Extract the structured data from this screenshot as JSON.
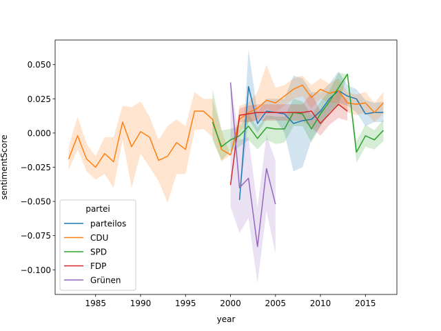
{
  "chart_data": {
    "type": "line",
    "xlabel": "year",
    "ylabel": "sentimentScore",
    "xlim": [
      1980.5,
      2018.5
    ],
    "ylim": [
      -0.118,
      0.068
    ],
    "xticks": [
      1985,
      1990,
      1995,
      2000,
      2005,
      2010,
      2015
    ],
    "yticks": [
      -0.1,
      -0.075,
      -0.05,
      -0.025,
      0.0,
      0.025,
      0.05
    ],
    "ytick_labels": [
      "−0.100",
      "−0.075",
      "−0.050",
      "−0.025",
      "0.000",
      "0.025",
      "0.050"
    ],
    "grid": false,
    "legend_title": "partei",
    "legend_position": "lower-left",
    "series": [
      {
        "name": "parteilos",
        "color": "#1f77b4",
        "x": [
          2001,
          2002,
          2003,
          2004,
          2005,
          2006,
          2007,
          2008,
          2009,
          2010,
          2011,
          2012,
          2013,
          2014,
          2015,
          2016,
          2017
        ],
        "y": [
          -0.049,
          0.034,
          0.007,
          0.016,
          0.015,
          0.014,
          0.007,
          0.009,
          0.01,
          0.016,
          0.025,
          0.031,
          0.027,
          0.025,
          0.014,
          0.015,
          0.015
        ],
        "lower": [
          -0.049,
          0.01,
          0.0,
          0.01,
          0.01,
          0.0,
          -0.028,
          -0.025,
          -0.005,
          0.005,
          0.015,
          0.022,
          0.02,
          0.015,
          0.005,
          0.008,
          0.008
        ],
        "upper": [
          -0.049,
          0.061,
          0.015,
          0.025,
          0.025,
          0.025,
          0.042,
          0.04,
          0.03,
          0.03,
          0.036,
          0.045,
          0.035,
          0.032,
          0.024,
          0.022,
          0.023
        ]
      },
      {
        "name": "CDU",
        "color": "#ff7f0e",
        "x": [
          1982,
          1983,
          1984,
          1985,
          1986,
          1987,
          1988,
          1989,
          1990,
          1991,
          1992,
          1993,
          1994,
          1995,
          1996,
          1997,
          1998,
          1999,
          2000,
          2001,
          2002,
          2003,
          2004,
          2005,
          2006,
          2007,
          2008,
          2009,
          2010,
          2011,
          2012,
          2013,
          2014,
          2015,
          2016,
          2017
        ],
        "y": [
          -0.019,
          -0.002,
          -0.019,
          -0.025,
          -0.015,
          -0.021,
          0.008,
          -0.01,
          0.001,
          -0.003,
          -0.02,
          -0.017,
          -0.007,
          -0.012,
          0.016,
          0.016,
          0.01,
          -0.012,
          -0.016,
          0.01,
          0.015,
          0.018,
          0.024,
          0.022,
          0.027,
          0.032,
          0.035,
          0.026,
          0.032,
          0.029,
          0.031,
          0.022,
          0.021,
          0.022,
          0.015,
          0.022
        ],
        "lower": [
          -0.027,
          -0.012,
          -0.028,
          -0.034,
          -0.03,
          -0.04,
          -0.005,
          -0.04,
          -0.015,
          -0.025,
          -0.035,
          -0.051,
          -0.03,
          -0.03,
          0.002,
          0.003,
          -0.003,
          -0.021,
          -0.016,
          0.0,
          0.008,
          0.01,
          0.018,
          0.015,
          0.02,
          0.025,
          0.027,
          0.018,
          0.025,
          0.022,
          0.022,
          0.015,
          0.013,
          0.015,
          0.008,
          0.014
        ],
        "upper": [
          -0.01,
          0.012,
          -0.008,
          -0.017,
          -0.003,
          -0.003,
          0.02,
          0.019,
          0.023,
          0.012,
          -0.005,
          0.005,
          0.01,
          0.005,
          0.03,
          0.025,
          0.025,
          0.002,
          -0.016,
          0.02,
          0.022,
          0.03,
          0.05,
          0.033,
          0.035,
          0.04,
          0.042,
          0.035,
          0.04,
          0.036,
          0.04,
          0.03,
          0.028,
          0.03,
          0.022,
          0.03
        ]
      },
      {
        "name": "SPD",
        "color": "#2ca02c",
        "x": [
          1998,
          1999,
          2000,
          2001,
          2002,
          2003,
          2004,
          2005,
          2006,
          2007,
          2008,
          2009,
          2010,
          2011,
          2012,
          2013,
          2014,
          2015,
          2016,
          2017
        ],
        "y": [
          0.008,
          -0.01,
          -0.005,
          -0.002,
          0.005,
          -0.004,
          0.004,
          0.003,
          0.003,
          0.015,
          0.014,
          0.003,
          0.014,
          0.023,
          0.033,
          0.043,
          -0.014,
          -0.002,
          -0.005,
          0.002
        ],
        "lower": [
          -0.005,
          -0.02,
          -0.013,
          -0.01,
          -0.005,
          -0.012,
          -0.005,
          -0.008,
          -0.007,
          0.005,
          0.005,
          -0.007,
          0.005,
          0.015,
          0.02,
          0.043,
          -0.022,
          -0.01,
          -0.012,
          -0.006
        ],
        "upper": [
          0.032,
          0.002,
          0.003,
          0.005,
          0.014,
          0.004,
          0.013,
          0.012,
          0.012,
          0.025,
          0.023,
          0.013,
          0.023,
          0.031,
          0.044,
          0.043,
          -0.006,
          0.006,
          0.002,
          0.01
        ]
      },
      {
        "name": "FDP",
        "color": "#d62728",
        "x": [
          2000,
          2001,
          2002,
          2003,
          2004,
          2005,
          2006,
          2007,
          2008,
          2009,
          2010,
          2011,
          2012,
          2013
        ],
        "y": [
          -0.038,
          0.013,
          0.014,
          0.015,
          0.015,
          0.015,
          0.015,
          0.015,
          0.015,
          0.016,
          0.007,
          0.014,
          0.021,
          0.016
        ],
        "lower": [
          -0.038,
          0.008,
          0.008,
          0.009,
          0.009,
          0.009,
          0.009,
          0.009,
          0.009,
          0.004,
          -0.002,
          0.006,
          0.011,
          0.009
        ],
        "upper": [
          -0.038,
          0.018,
          0.02,
          0.021,
          0.021,
          0.021,
          0.021,
          0.021,
          0.021,
          0.029,
          0.016,
          0.022,
          0.031,
          0.024
        ]
      },
      {
        "name": "Grünen",
        "color": "#9467bd",
        "x": [
          2000,
          2001,
          2002,
          2003,
          2004,
          2005
        ],
        "y": [
          0.037,
          -0.04,
          -0.033,
          -0.083,
          -0.026,
          -0.052
        ],
        "lower": [
          -0.054,
          -0.073,
          -0.062,
          -0.11,
          -0.057,
          -0.088
        ],
        "upper": [
          0.037,
          -0.005,
          -0.003,
          -0.054,
          -0.002,
          -0.02
        ]
      }
    ]
  }
}
